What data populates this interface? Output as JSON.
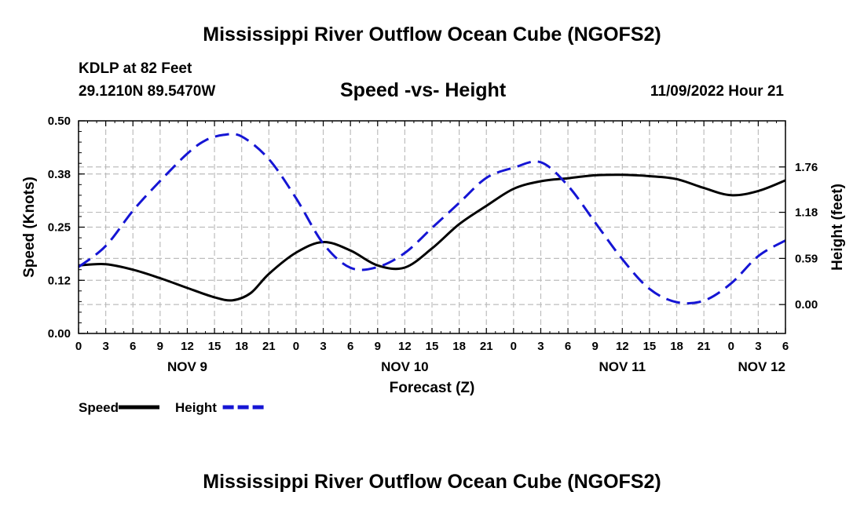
{
  "page": {
    "title": "Mississippi River Outflow Ocean Cube (NGOFS2)",
    "footer_title": "Mississippi River Outflow Ocean Cube (NGOFS2)"
  },
  "chart_data": {
    "type": "line",
    "title": "Speed -vs- Height",
    "station": "KDLP at 82 Feet",
    "location": "29.1210N  89.5470W",
    "issued": "11/09/2022 Hour 21",
    "xlabel": "Forecast (Z)",
    "ylabel_left": "Speed (Knots)",
    "ylabel_right": "Height (feet)",
    "x_hours_range": [
      0,
      78
    ],
    "x_tick_labels": [
      "0",
      "3",
      "6",
      "9",
      "12",
      "15",
      "18",
      "21",
      "0",
      "3",
      "6",
      "9",
      "12",
      "15",
      "18",
      "21",
      "0",
      "3",
      "6",
      "9",
      "12",
      "15",
      "18",
      "21",
      "0",
      "3",
      "6"
    ],
    "day_labels": [
      {
        "label": "NOV 9",
        "hour": 12
      },
      {
        "label": "NOV 10",
        "hour": 36
      },
      {
        "label": "NOV 11",
        "hour": 60
      },
      {
        "label": "NOV 12",
        "hour": 78
      }
    ],
    "speed_axis": {
      "min": 0.0,
      "max": 0.5,
      "ticks": [
        0.0,
        0.125,
        0.25,
        0.375,
        0.5
      ],
      "tick_labels": [
        "0.00",
        "0.12",
        "0.25",
        "0.38",
        "0.50"
      ]
    },
    "height_axis": {
      "min": -0.37,
      "max": 2.35,
      "ticks": [
        0.0,
        0.59,
        1.18,
        1.76
      ],
      "tick_labels": [
        "0.00",
        "0.59",
        "1.18",
        "1.76"
      ]
    },
    "series": [
      {
        "name": "Speed",
        "axis": "left",
        "color": "#000000",
        "dash": "solid",
        "x": [
          0,
          3,
          6,
          9,
          12,
          15,
          17,
          19,
          21,
          24,
          27,
          30,
          33,
          36,
          39,
          42,
          45,
          48,
          51,
          54,
          57,
          60,
          63,
          66,
          69,
          72,
          75,
          78
        ],
        "values": [
          0.16,
          0.163,
          0.15,
          0.13,
          0.107,
          0.085,
          0.078,
          0.095,
          0.14,
          0.19,
          0.215,
          0.195,
          0.16,
          0.155,
          0.2,
          0.257,
          0.3,
          0.34,
          0.358,
          0.365,
          0.372,
          0.373,
          0.37,
          0.363,
          0.342,
          0.325,
          0.335,
          0.36
        ]
      },
      {
        "name": "Height",
        "axis": "right",
        "color": "#1515d4",
        "dash": "dashed",
        "x": [
          0,
          3,
          6,
          9,
          12,
          14,
          16,
          18,
          21,
          24,
          27,
          30,
          33,
          36,
          39,
          42,
          45,
          48,
          51,
          54,
          57,
          60,
          63,
          66,
          69,
          72,
          75,
          78
        ],
        "values": [
          0.48,
          0.75,
          1.2,
          1.58,
          1.93,
          2.1,
          2.17,
          2.15,
          1.86,
          1.36,
          0.78,
          0.47,
          0.48,
          0.66,
          0.98,
          1.3,
          1.62,
          1.75,
          1.82,
          1.52,
          1.05,
          0.58,
          0.2,
          0.03,
          0.05,
          0.27,
          0.62,
          0.82
        ]
      }
    ],
    "legend": [
      {
        "label": "Speed",
        "color": "#000000",
        "dash": "solid"
      },
      {
        "label": "Height",
        "color": "#1515d4",
        "dash": "dashed"
      }
    ],
    "legend_position": "bottom-left",
    "grid": true
  }
}
